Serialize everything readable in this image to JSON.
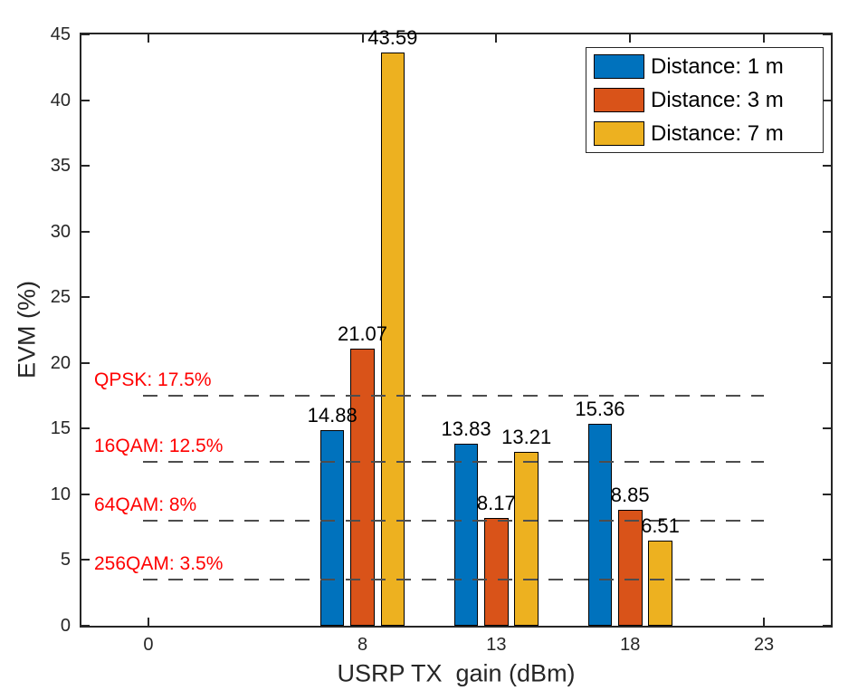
{
  "chart_data": {
    "type": "bar",
    "title": "",
    "xlabel": "USRP TX  gain (dBm)",
    "ylabel": "EVM (%)",
    "categories": [
      8,
      13,
      18
    ],
    "series": [
      {
        "name": "Distance: 1 m",
        "color": "#0072BD",
        "values": [
          14.88,
          13.83,
          15.36
        ]
      },
      {
        "name": "Distance: 3 m",
        "color": "#D95319",
        "values": [
          21.07,
          8.17,
          8.85
        ]
      },
      {
        "name": "Distance: 7 m",
        "color": "#EDB120",
        "values": [
          43.59,
          13.21,
          6.51
        ]
      }
    ],
    "bar_value_decimals": 2,
    "xlim": [
      -2.5,
      25.5
    ],
    "ylim": [
      0,
      45
    ],
    "x_tick_values": [
      0,
      8,
      13,
      18,
      23
    ],
    "y_tick_values": [
      0,
      5,
      10,
      15,
      20,
      25,
      30,
      35,
      40,
      45
    ],
    "grid": false,
    "legend_position": "top-right",
    "thresholds": [
      {
        "label": "QPSK: 17.5%",
        "value": 17.5
      },
      {
        "label": "16QAM: 12.5%",
        "value": 12.5
      },
      {
        "label": "64QAM: 8%",
        "value": 8
      },
      {
        "label": "256QAM: 3.5%",
        "value": 3.5
      }
    ],
    "threshold_line_span": [
      0,
      23
    ],
    "colors": {
      "threshold_text": "#FF0000",
      "dashed_line": "#4D4D4D",
      "axis": "#262626",
      "bar_edge": "#000000",
      "value_label": "#000000",
      "background": "#FFFFFF"
    }
  }
}
